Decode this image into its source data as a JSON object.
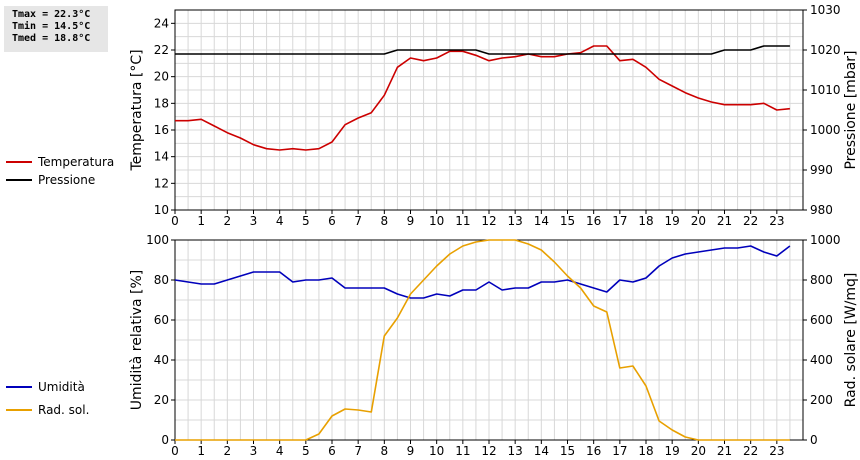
{
  "stats": {
    "tmax": "Tmax = 22.3°C",
    "tmin": "Tmin = 14.5°C",
    "tmed": "Tmed = 18.8°C"
  },
  "chart_data": [
    {
      "type": "line",
      "x_ticks": [
        "0",
        "1",
        "2",
        "3",
        "4",
        "5",
        "6",
        "7",
        "8",
        "9",
        "10",
        "11",
        "12",
        "13",
        "14",
        "15",
        "16",
        "17",
        "18",
        "19",
        "20",
        "21",
        "22",
        "23"
      ],
      "xlim": [
        0,
        24
      ],
      "ylabel_left": "Temperatura [°C]",
      "ylabel_right": "Pressione [mbar]",
      "ylim_left": [
        10,
        25
      ],
      "ylim_right": [
        980,
        1030
      ],
      "yticks_left": [
        10,
        12,
        14,
        16,
        18,
        20,
        22,
        24
      ],
      "yticks_right": [
        980,
        990,
        1000,
        1010,
        1020,
        1030
      ],
      "grid": true,
      "series": [
        {
          "name": "Temperatura",
          "axis": "left",
          "color": "#cc0000",
          "x": [
            0,
            0.5,
            1,
            1.5,
            2,
            2.5,
            3,
            3.5,
            4,
            4.5,
            5,
            5.5,
            6,
            6.5,
            7,
            7.5,
            8,
            8.5,
            9,
            9.5,
            10,
            10.5,
            11,
            11.5,
            12,
            12.5,
            13,
            13.5,
            14,
            14.5,
            15,
            15.5,
            16,
            16.5,
            17,
            17.5,
            18,
            18.5,
            19,
            19.5,
            20,
            20.5,
            21,
            21.5,
            22,
            22.5,
            23,
            23.5
          ],
          "values": [
            16.7,
            16.7,
            16.8,
            16.3,
            15.8,
            15.4,
            14.9,
            14.6,
            14.5,
            14.6,
            14.5,
            14.6,
            15.1,
            16.4,
            16.9,
            17.3,
            18.6,
            20.7,
            21.4,
            21.2,
            21.4,
            21.9,
            21.9,
            21.6,
            21.2,
            21.4,
            21.5,
            21.7,
            21.5,
            21.5,
            21.7,
            21.8,
            22.3,
            22.3,
            21.2,
            21.3,
            20.7,
            19.8,
            19.3,
            18.8,
            18.4,
            18.1,
            17.9,
            17.9,
            17.9,
            18.0,
            17.5,
            17.6
          ]
        },
        {
          "name": "Pressione",
          "axis": "right",
          "color": "#000000",
          "x": [
            0,
            0.5,
            1,
            1.5,
            2,
            2.5,
            3,
            3.5,
            4,
            4.5,
            5,
            5.5,
            6,
            6.5,
            7,
            7.5,
            8,
            8.5,
            9,
            9.5,
            10,
            10.5,
            11,
            11.5,
            12,
            12.5,
            13,
            13.5,
            14,
            14.5,
            15,
            15.5,
            16,
            16.5,
            17,
            17.5,
            18,
            18.5,
            19,
            19.5,
            20,
            20.5,
            21,
            21.5,
            22,
            22.5,
            23,
            23.5
          ],
          "values": [
            1019,
            1019,
            1019,
            1019,
            1019,
            1019,
            1019,
            1019,
            1019,
            1019,
            1019,
            1019,
            1019,
            1019,
            1019,
            1019,
            1019,
            1020,
            1020,
            1020,
            1020,
            1020,
            1020,
            1020,
            1019,
            1019,
            1019,
            1019,
            1019,
            1019,
            1019,
            1019,
            1019,
            1019,
            1019,
            1019,
            1019,
            1019,
            1019,
            1019,
            1019,
            1019,
            1020,
            1020,
            1020,
            1021,
            1021,
            1021
          ]
        }
      ]
    },
    {
      "type": "line",
      "x_ticks": [
        "0",
        "1",
        "2",
        "3",
        "4",
        "5",
        "6",
        "7",
        "8",
        "9",
        "10",
        "11",
        "12",
        "13",
        "14",
        "15",
        "16",
        "17",
        "18",
        "19",
        "20",
        "21",
        "22",
        "23"
      ],
      "xlim": [
        0,
        24
      ],
      "ylabel_left": "Umidità relativa [%]",
      "ylabel_right": "Rad. solare [W/mq]",
      "ylim_left": [
        0,
        100
      ],
      "ylim_right": [
        0,
        1000
      ],
      "yticks_left": [
        0,
        20,
        40,
        60,
        80,
        100
      ],
      "yticks_right": [
        0,
        200,
        400,
        600,
        800,
        1000
      ],
      "grid": true,
      "series": [
        {
          "name": "Umidità",
          "axis": "left",
          "color": "#0000bb",
          "x": [
            0,
            0.5,
            1,
            1.5,
            2,
            2.5,
            3,
            3.5,
            4,
            4.5,
            5,
            5.5,
            6,
            6.5,
            7,
            7.5,
            8,
            8.5,
            9,
            9.5,
            10,
            10.5,
            11,
            11.5,
            12,
            12.5,
            13,
            13.5,
            14,
            14.5,
            15,
            15.5,
            16,
            16.5,
            17,
            17.5,
            18,
            18.5,
            19,
            19.5,
            20,
            20.5,
            21,
            21.5,
            22,
            22.5,
            23,
            23.5
          ],
          "values": [
            80,
            79,
            78,
            78,
            80,
            82,
            84,
            84,
            84,
            79,
            80,
            80,
            81,
            76,
            76,
            76,
            76,
            73,
            71,
            71,
            73,
            72,
            75,
            75,
            79,
            75,
            76,
            76,
            79,
            79,
            80,
            78,
            76,
            74,
            80,
            79,
            81,
            87,
            91,
            93,
            94,
            95,
            96,
            96,
            97,
            94,
            92,
            97
          ]
        },
        {
          "name": "Rad. sol.",
          "axis": "right",
          "color": "#e8a000",
          "x": [
            0,
            0.5,
            1,
            1.5,
            2,
            2.5,
            3,
            3.5,
            4,
            4.5,
            5,
            5.5,
            6,
            6.5,
            7,
            7.5,
            8,
            8.5,
            9,
            9.5,
            10,
            10.5,
            11,
            11.5,
            12,
            12.5,
            13,
            13.5,
            14,
            14.5,
            15,
            15.5,
            16,
            16.5,
            17,
            17.5,
            18,
            18.5,
            19,
            19.5,
            20,
            20.5,
            21,
            21.5,
            22,
            22.5,
            23,
            23.5
          ],
          "values": [
            0,
            0,
            0,
            0,
            0,
            0,
            0,
            0,
            0,
            0,
            0,
            30,
            120,
            155,
            150,
            140,
            520,
            610,
            730,
            800,
            870,
            930,
            970,
            990,
            1000,
            1000,
            1000,
            980,
            950,
            890,
            820,
            760,
            670,
            640,
            360,
            370,
            270,
            95,
            50,
            15,
            0,
            0,
            0,
            0,
            0,
            0,
            0,
            0
          ]
        }
      ]
    }
  ]
}
